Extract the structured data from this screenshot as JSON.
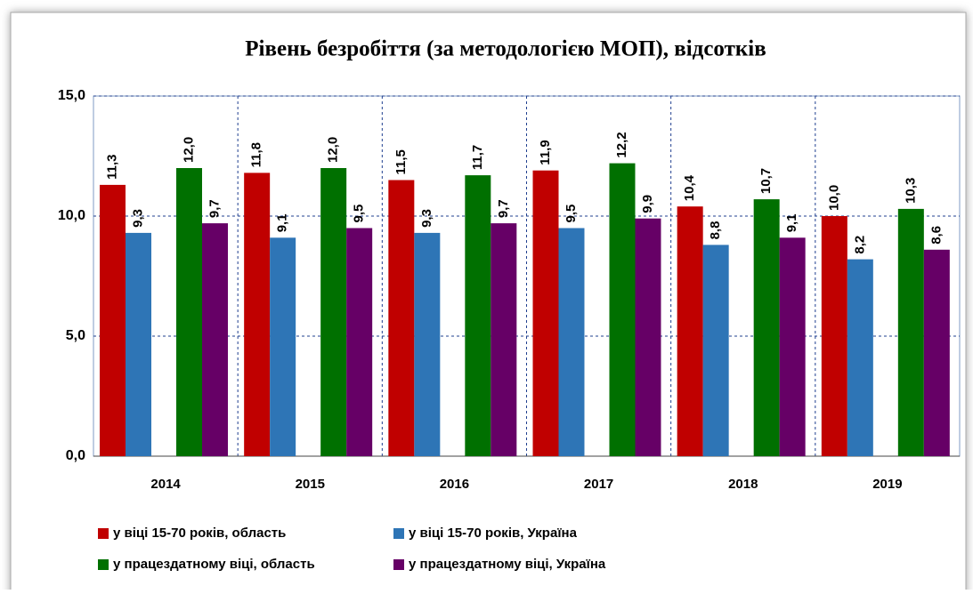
{
  "chart_data": {
    "type": "bar",
    "title": "Рівень безробіття (за методологією МОП), відсотків",
    "categories": [
      "2014",
      "2015",
      "2016",
      "2017",
      "2018",
      "2019"
    ],
    "series": [
      {
        "name": "у віці 15-70 років, область",
        "color": "#c00000",
        "values": [
          11.3,
          11.8,
          11.5,
          11.9,
          10.4,
          10.0
        ],
        "value_labels": [
          "11,3",
          "11,8",
          "11,5",
          "11,9",
          "10,4",
          "10,0"
        ]
      },
      {
        "name": "у віці 15-70 років, Україна",
        "color": "#2e75b6",
        "values": [
          9.3,
          9.1,
          9.3,
          9.5,
          8.8,
          8.2
        ],
        "value_labels": [
          "9,3",
          "9,1",
          "9,3",
          "9,5",
          "8,8",
          "8,2"
        ]
      },
      {
        "name": "у працездатному віці, область",
        "color": "#007000",
        "values": [
          12.0,
          12.0,
          11.7,
          12.2,
          10.7,
          10.3
        ],
        "value_labels": [
          "12,0",
          "12,0",
          "11,7",
          "12,2",
          "10,7",
          "10,3"
        ]
      },
      {
        "name": "у працездатному віці, Україна",
        "color": "#660066",
        "values": [
          9.7,
          9.5,
          9.7,
          9.9,
          9.1,
          8.6
        ],
        "value_labels": [
          "9,7",
          "9,5",
          "9,7",
          "9,9",
          "9,1",
          "8,6"
        ]
      }
    ],
    "ylim": [
      0,
      15
    ],
    "yticks": [
      {
        "value": 0,
        "label": "0,0"
      },
      {
        "value": 5,
        "label": "5,0"
      },
      {
        "value": 10,
        "label": "10,0"
      },
      {
        "value": 15,
        "label": "15,0"
      }
    ],
    "grid": true,
    "legend": "bottom"
  }
}
